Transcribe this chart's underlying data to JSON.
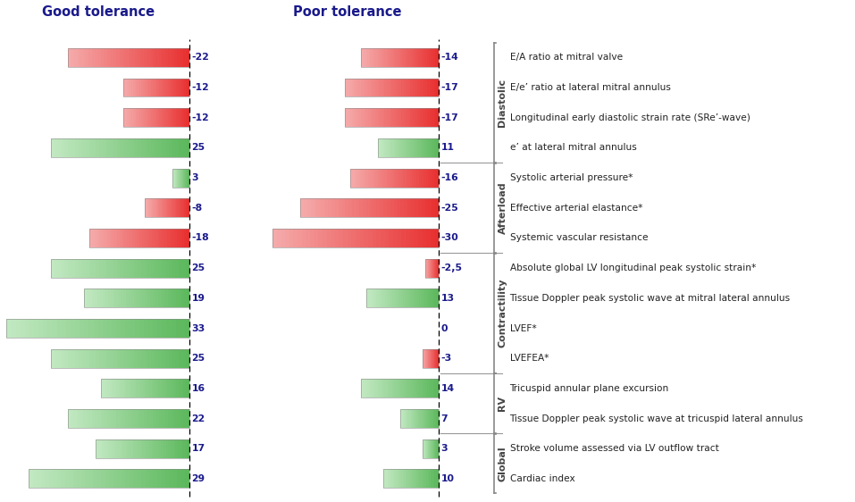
{
  "rows": [
    {
      "label": "E/A ratio at mitral valve",
      "good": -22,
      "poor": -14,
      "group": "Diastolic"
    },
    {
      "label": "E/e’ ratio at lateral mitral annulus",
      "good": -12,
      "poor": -17,
      "group": "Diastolic"
    },
    {
      "label": "Longitudinal early diastolic strain rate (SRe’-wave)",
      "good": -12,
      "poor": -17,
      "group": "Diastolic"
    },
    {
      "label": "e’ at lateral mitral annulus",
      "good": 25,
      "poor": 11,
      "group": "Diastolic"
    },
    {
      "label": "Systolic arterial pressure*",
      "good": 3,
      "poor": -16,
      "group": "Afterload"
    },
    {
      "label": "Effective arterial elastance*",
      "good": -8,
      "poor": -25,
      "group": "Afterload"
    },
    {
      "label": "Systemic vascular resistance",
      "good": -18,
      "poor": -30,
      "group": "Afterload"
    },
    {
      "label": "Absolute global LV longitudinal peak systolic strain*",
      "good": 25,
      "poor": -2.5,
      "group": "Contractility"
    },
    {
      "label": "Tissue Doppler peak systolic wave at mitral lateral annulus",
      "good": 19,
      "poor": 13,
      "group": "Contractility"
    },
    {
      "label": "LVEF*",
      "good": 33,
      "poor": 0,
      "group": "Contractility"
    },
    {
      "label": "LVEFEA*",
      "good": 25,
      "poor": -3,
      "group": "Contractility"
    },
    {
      "label": "Tricuspid annular plane excursion",
      "good": 16,
      "poor": 14,
      "group": "RV"
    },
    {
      "label": "Tissue Doppler peak systolic wave at tricuspid lateral annulus",
      "good": 22,
      "poor": 7,
      "group": "RV"
    },
    {
      "label": "Stroke volume assessed via LV outflow tract",
      "good": 17,
      "poor": 3,
      "group": "Global"
    },
    {
      "label": "Cardiac index",
      "good": 29,
      "poor": 10,
      "group": "Global"
    }
  ],
  "groups": [
    {
      "name": "Diastolic",
      "rows": [
        0,
        1,
        2,
        3
      ]
    },
    {
      "name": "Afterload",
      "rows": [
        4,
        5,
        6
      ]
    },
    {
      "name": "Contractility",
      "rows": [
        7,
        8,
        9,
        10
      ]
    },
    {
      "name": "RV",
      "rows": [
        11,
        12
      ]
    },
    {
      "name": "Global",
      "rows": [
        13,
        14
      ]
    }
  ],
  "good_title": "Good tolerance",
  "poor_title": "Poor tolerance",
  "red_dark": "#E83030",
  "red_light": "#F5AAAA",
  "green_dark": "#5CB85C",
  "green_light": "#C2E8C2",
  "bar_height": 0.62,
  "max_val": 33,
  "title_color": "#1a1a8c",
  "group_color": "#444444",
  "label_color": "#222222",
  "value_color": "#1a1a8c"
}
